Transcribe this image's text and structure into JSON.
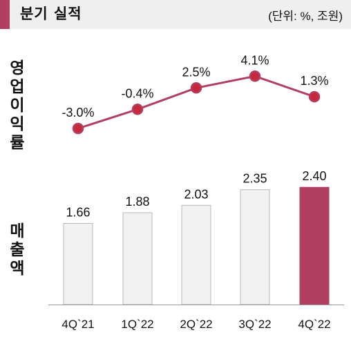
{
  "header": {
    "title": "분기 실적",
    "unit": "(단위: %, 조원)",
    "accent_color": "#b03f62"
  },
  "chart_data": [
    {
      "type": "line",
      "ylabel": "영업이익률",
      "categories": [
        "4Q`21",
        "1Q`22",
        "2Q`22",
        "3Q`22",
        "4Q`22"
      ],
      "series": [
        {
          "values": [
            -3.0,
            -0.4,
            2.5,
            4.1,
            1.3
          ],
          "labels": [
            "-3.0%",
            "-0.4%",
            "2.5%",
            "4.1%",
            "1.3%"
          ]
        }
      ],
      "color": "#b03f62",
      "ylim": [
        -4.5,
        6.0
      ]
    },
    {
      "type": "bar",
      "ylabel": "매출액",
      "categories": [
        "4Q`21",
        "1Q`22",
        "2Q`22",
        "3Q`22",
        "4Q`22"
      ],
      "values": [
        1.66,
        1.88,
        2.03,
        2.35,
        2.4
      ],
      "labels": [
        "1.66",
        "1.88",
        "2.03",
        "2.35",
        "2.40"
      ],
      "colors": [
        "#f2f2f2",
        "#f2f2f2",
        "#f2f2f2",
        "#f2f2f2",
        "#b03f62"
      ],
      "ylim": [
        0,
        2.6
      ]
    }
  ]
}
